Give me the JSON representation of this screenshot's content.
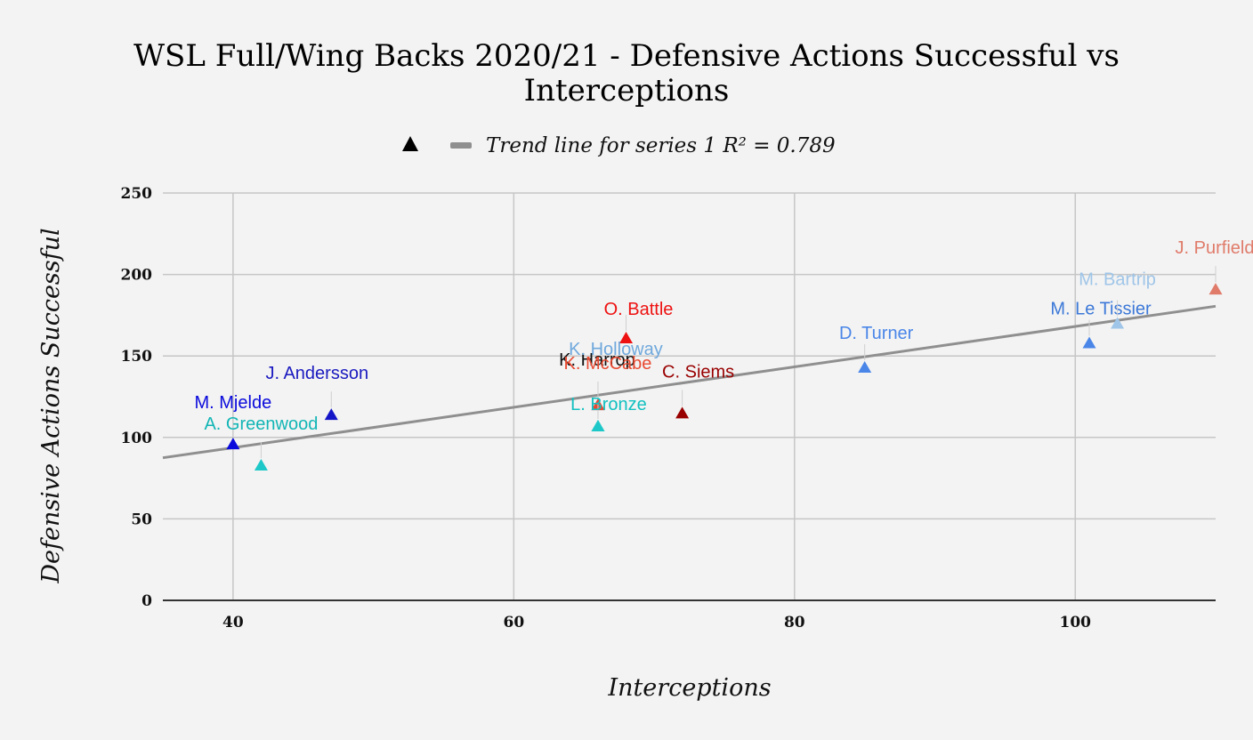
{
  "chart_data": {
    "type": "scatter",
    "title": "WSL Full/Wing Backs 2020/21 - Defensive Actions Successful vs Interceptions",
    "title_lines": [
      "WSL Full/Wing Backs 2020/21 - Defensive Actions Successful vs",
      "Interceptions"
    ],
    "xlabel": "Interceptions",
    "ylabel": "Defensive Actions Successful",
    "xlim": [
      35,
      110
    ],
    "ylim": [
      0,
      250
    ],
    "xticks": [
      40,
      60,
      80,
      100
    ],
    "yticks": [
      0,
      50,
      100,
      150,
      200,
      250
    ],
    "grid": true,
    "legend_position": "top-center",
    "legend": {
      "trendline_label": "Trend line for series 1 R² = 0.789"
    },
    "marker": "triangle",
    "trendline": {
      "x0": 35,
      "y0": 87.5,
      "x1": 110,
      "y1": 180.5,
      "color": "#8f8f8f"
    },
    "points": [
      {
        "label": "M. Mjelde",
        "x": 40,
        "y": 96,
        "color": "#0a0adc",
        "label_color": "#0a0adc"
      },
      {
        "label": "A. Greenwood",
        "x": 42,
        "y": 83,
        "color": "#1ec8c8",
        "label_color": "#12b5b5"
      },
      {
        "label": "J. Andersson",
        "x": 47,
        "y": 114,
        "color": "#1515c8",
        "label_color": "#1a1ac0"
      },
      {
        "label": "O. Battle",
        "x": 68,
        "y": 161,
        "color": "#ee1111",
        "label_color": "#ee1111"
      },
      {
        "label": "K. Harrop",
        "x": 66,
        "y": 107,
        "color": "#1ec8c8",
        "label_color": "#111111"
      },
      {
        "label": "K. Holloway",
        "x": 66,
        "y": 120,
        "color": "#6fa8dc",
        "label_color": "#6fa8dc"
      },
      {
        "label": "K. McCabe",
        "x": 66,
        "y": 120,
        "color": "#e84a32",
        "label_color": "#e84a32"
      },
      {
        "label": "L. Bronze",
        "x": 66,
        "y": 107,
        "color": "#1ec8c8",
        "label_color": "#12c0c0"
      },
      {
        "label": "C. Siems",
        "x": 72,
        "y": 115,
        "color": "#990000",
        "label_color": "#990000"
      },
      {
        "label": "D. Turner",
        "x": 85,
        "y": 143,
        "color": "#4a86e8",
        "label_color": "#4a86e8"
      },
      {
        "label": "M. Le Tissier",
        "x": 101,
        "y": 158,
        "color": "#4a86e8",
        "label_color": "#3c78d8"
      },
      {
        "label": "M. Bartrip",
        "x": 103,
        "y": 170,
        "color": "#9fc5e8",
        "label_color": "#9fc5e8"
      },
      {
        "label": "J. Purfield",
        "x": 110,
        "y": 191,
        "color": "#e07b6a",
        "label_color": "#e07b6a"
      }
    ]
  }
}
